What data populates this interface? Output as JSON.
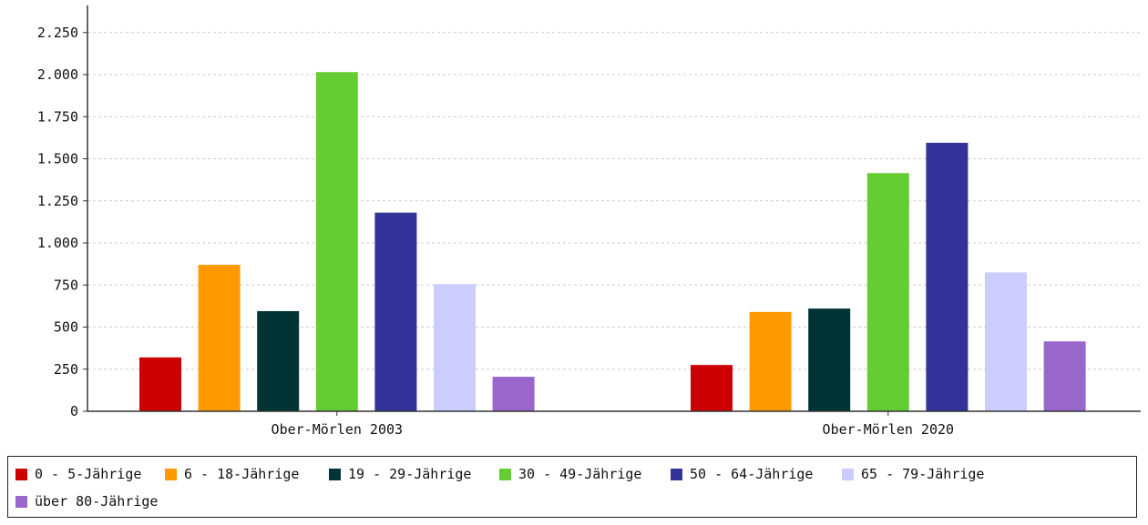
{
  "chart_data": {
    "type": "bar",
    "categories": [
      "Ober-Mörlen 2003",
      "Ober-Mörlen 2020"
    ],
    "series": [
      {
        "name": "0 - 5-Jährige",
        "color": "#cc0000",
        "values": [
          320,
          275
        ]
      },
      {
        "name": "6 - 18-Jährige",
        "color": "#ff9900",
        "values": [
          870,
          590
        ]
      },
      {
        "name": "19 - 29-Jährige",
        "color": "#003333",
        "values": [
          595,
          610
        ]
      },
      {
        "name": "30 - 49-Jährige",
        "color": "#66cc33",
        "values": [
          2015,
          1415
        ]
      },
      {
        "name": "50 - 64-Jährige",
        "color": "#333399",
        "values": [
          1180,
          1595
        ]
      },
      {
        "name": "65 - 79-Jährige",
        "color": "#ccccff",
        "values": [
          755,
          825
        ]
      },
      {
        "name": "über 80-Jährige",
        "color": "#9966cc",
        "values": [
          205,
          415
        ]
      }
    ],
    "ylim": [
      0,
      2400
    ],
    "yticks": [
      0,
      250,
      500,
      750,
      1000,
      1250,
      1500,
      1750,
      2000,
      2250
    ],
    "ytick_labels": [
      "0",
      "250",
      "500",
      "750",
      "1.000",
      "1.250",
      "1.500",
      "1.750",
      "2.000",
      "2.250"
    ],
    "grid": true,
    "legend_position": "bottom",
    "title": "",
    "xlabel": "",
    "ylabel": ""
  }
}
